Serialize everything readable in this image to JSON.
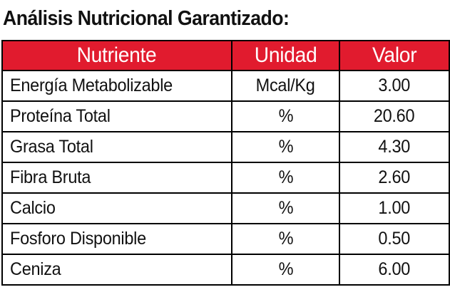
{
  "title": "Análisis Nutricional Garantizado:",
  "table": {
    "header_color": "#e11b2e",
    "columns": [
      "Nutriente",
      "Unidad",
      "Valor"
    ],
    "rows": [
      {
        "nutriente": "Energía Metabolizable",
        "unidad": "Mcal/Kg",
        "valor": "3.00"
      },
      {
        "nutriente": "Proteína Total",
        "unidad": "%",
        "valor": "20.60"
      },
      {
        "nutriente": "Grasa Total",
        "unidad": "%",
        "valor": "4.30"
      },
      {
        "nutriente": "Fibra Bruta",
        "unidad": "%",
        "valor": "2.60"
      },
      {
        "nutriente": "Calcio",
        "unidad": "%",
        "valor": "1.00"
      },
      {
        "nutriente": "Fosforo Disponible",
        "unidad": "%",
        "valor": "0.50"
      },
      {
        "nutriente": "Ceniza",
        "unidad": "%",
        "valor": "6.00"
      }
    ]
  }
}
